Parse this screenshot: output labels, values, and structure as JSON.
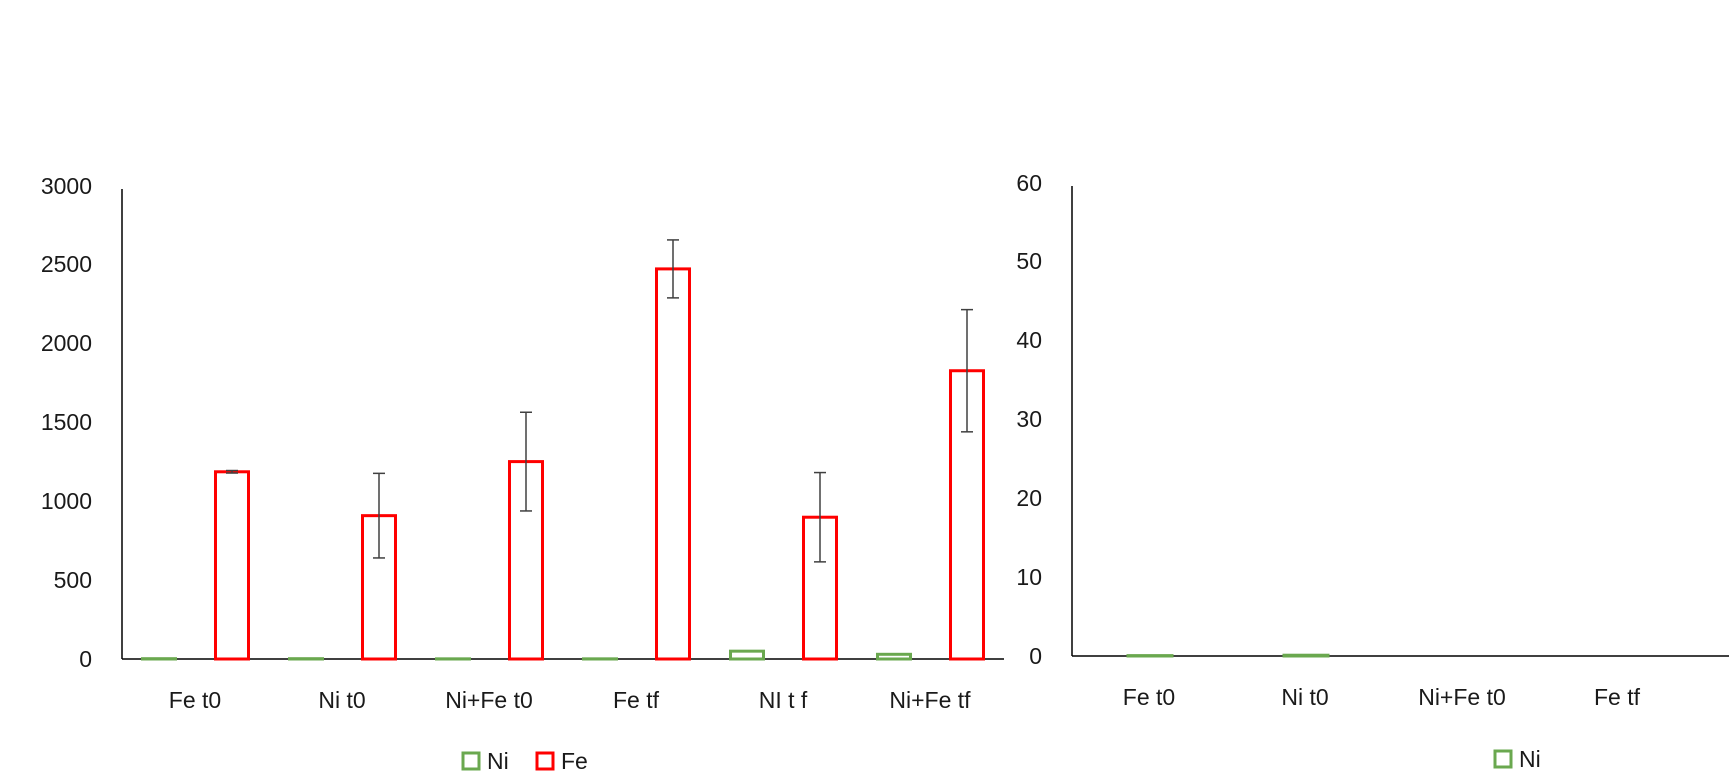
{
  "colors": {
    "ni": "#6aa84f",
    "fe": "#ff0000",
    "axis": "#000000",
    "errorbar": "#404040"
  },
  "chart_data": [
    {
      "type": "bar",
      "categories": [
        "Fe t0",
        "Ni t0",
        "Ni+Fe t0",
        "Fe tf",
        "NI t f",
        "Ni+Fe tf"
      ],
      "ylim": [
        0,
        3000
      ],
      "yticks": [
        "0",
        "500",
        "1000",
        "1500",
        "2000",
        "2500",
        "3000"
      ],
      "legend": {
        "position": "bottom",
        "entries": [
          "Ni",
          "Fe"
        ]
      },
      "series": [
        {
          "name": "Ni",
          "values": [
            2,
            2,
            1,
            1,
            50,
            30
          ],
          "errors": [
            0,
            0,
            0,
            0,
            0,
            0
          ]
        },
        {
          "name": "Fe",
          "values": [
            1195,
            915,
            1260,
            2490,
            905,
            1840
          ],
          "errors": [
            8,
            270,
            315,
            185,
            285,
            390
          ]
        }
      ]
    },
    {
      "type": "bar",
      "categories": [
        "Fe t0",
        "Ni t0",
        "Ni+Fe t0",
        "Fe tf"
      ],
      "ylim": [
        0,
        60
      ],
      "yticks": [
        "0",
        "10",
        "20",
        "30",
        "40",
        "50",
        "60"
      ],
      "legend": {
        "position": "bottom",
        "entries": [
          "Ni"
        ]
      },
      "series": [
        {
          "name": "Ni",
          "values": [
            0.05,
            0.1,
            0,
            0
          ],
          "errors": [
            0,
            0,
            0,
            0
          ]
        }
      ]
    }
  ]
}
